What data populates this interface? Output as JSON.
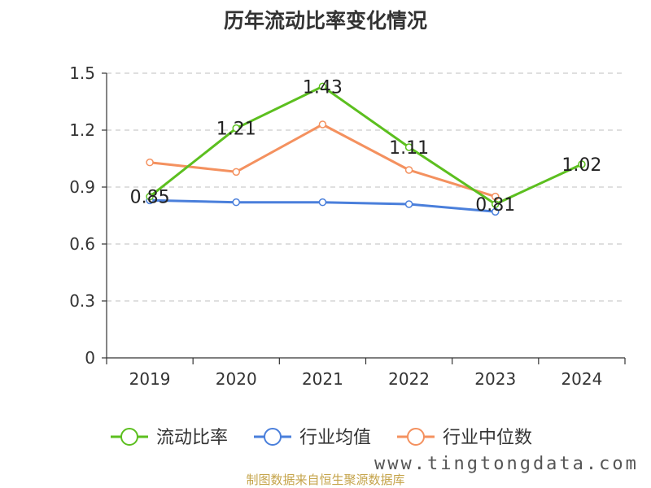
{
  "title": "历年流动比率变化情况",
  "watermark": "制图数据来自恒生聚源数据库",
  "site": "www.tingtongdata.com",
  "chart_data": {
    "type": "line",
    "title": "历年流动比率变化情况",
    "categories": [
      "2019",
      "2020",
      "2021",
      "2022",
      "2023",
      "2024"
    ],
    "ylim": [
      0,
      1.5
    ],
    "yticks": [
      "0",
      "0.3",
      "0.6",
      "0.9",
      "1.2",
      "1.5"
    ],
    "grid": true,
    "legend_position": "bottom",
    "series": [
      {
        "name": "流动比率",
        "color": "#5cbf1f",
        "values": [
          0.85,
          1.21,
          1.43,
          1.11,
          0.81,
          1.02
        ],
        "labels": [
          "0.85",
          "1.21",
          "1.43",
          "1.11",
          "0.81",
          "1.02"
        ]
      },
      {
        "name": "行业均值",
        "color": "#4a7fdb",
        "values": [
          0.83,
          0.82,
          0.82,
          0.81,
          0.77,
          null
        ]
      },
      {
        "name": "行业中位数",
        "color": "#f4915f",
        "values": [
          1.03,
          0.98,
          1.23,
          0.99,
          0.85,
          null
        ]
      }
    ]
  }
}
